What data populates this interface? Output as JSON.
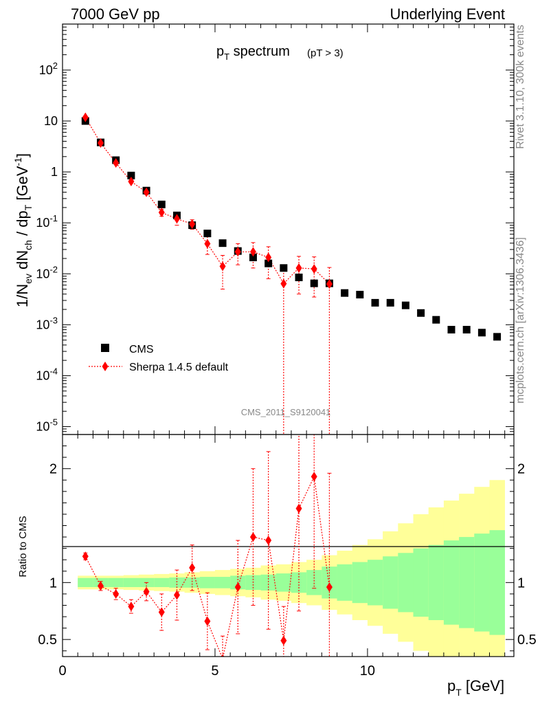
{
  "header": {
    "left": "7000 GeV pp",
    "right": "Underlying Event"
  },
  "side": {
    "rivet": "Rivet 3.1.10,  300k events",
    "mcplots": "mcplots.cern.ch [arXiv:1306.3436]"
  },
  "plot_title": {
    "main": "p",
    "main_sub": "T",
    "main_rest": " spectrum",
    "cut": "(pT >  3)"
  },
  "watermark": "CMS_2011_S9120041",
  "legend": {
    "cms": "CMS",
    "sherpa": "Sherpa 1.4.5 default"
  },
  "colors": {
    "data": "#000000",
    "mc": "#ff0000",
    "band_inner": "#99ff99",
    "band_outer": "#ffff99"
  },
  "chart_data": [
    {
      "type": "scatter",
      "panel": "main",
      "yscale": "log",
      "ylim": [
        7e-06,
        800
      ],
      "xlim": [
        0,
        14.8
      ],
      "ylabel": "1/N_ev dN_ch / dp_T [GeV^-1]",
      "y_ticks": [
        "10^-5",
        "10^-4",
        "10^-3",
        "10^-2",
        "10^-1",
        "1",
        "10",
        "10^2"
      ],
      "series": [
        {
          "name": "CMS",
          "marker": "square",
          "x": [
            0.75,
            1.25,
            1.75,
            2.25,
            2.75,
            3.25,
            3.75,
            4.25,
            4.75,
            5.25,
            5.75,
            6.25,
            6.75,
            7.25,
            7.75,
            8.25,
            8.75,
            9.25,
            9.75,
            10.25,
            10.75,
            11.25,
            11.75,
            12.25,
            12.75,
            13.25,
            13.75,
            14.25
          ],
          "y": [
            10,
            3.8,
            1.7,
            0.85,
            0.43,
            0.23,
            0.14,
            0.09,
            0.062,
            0.04,
            0.028,
            0.021,
            0.016,
            0.013,
            0.0085,
            0.0065,
            0.0065,
            0.0042,
            0.0039,
            0.0027,
            0.0027,
            0.0024,
            0.0017,
            0.00125,
            0.0008,
            0.0008,
            0.0007,
            0.00058
          ]
        },
        {
          "name": "Sherpa 1.4.5 default",
          "marker": "diamond",
          "x": [
            0.75,
            1.25,
            1.75,
            2.25,
            2.75,
            3.25,
            3.75,
            4.25,
            4.75,
            5.25,
            5.75,
            6.25,
            6.75,
            7.25,
            7.75,
            8.25,
            8.75
          ],
          "y": [
            11.8,
            3.7,
            1.5,
            0.65,
            0.4,
            0.16,
            0.12,
            0.095,
            0.039,
            0.014,
            0.027,
            0.027,
            0.021,
            0.0064,
            0.013,
            0.0125,
            0.0063
          ],
          "err_lo": [
            0.4,
            0.15,
            0.08,
            0.05,
            0.04,
            0.025,
            0.03,
            0.02,
            0.015,
            0.009,
            0.012,
            0.014,
            0.013,
            0.0064,
            0.009,
            0.009,
            0.0063
          ],
          "err_hi": [
            0.4,
            0.15,
            0.08,
            0.05,
            0.04,
            0.025,
            0.03,
            0.02,
            0.015,
            0.009,
            0.012,
            0.014,
            0.013,
            0.007,
            0.009,
            0.009,
            0.007
          ]
        }
      ]
    },
    {
      "type": "scatter",
      "panel": "ratio",
      "ylabel": "Ratio to CMS",
      "ylim": [
        0.35,
        2.3
      ],
      "xlim": [
        0,
        14.8
      ],
      "xlabel": "p_T [GeV]",
      "x_ticks": [
        "0",
        "5",
        "10"
      ],
      "y_ticks": [
        "0.5",
        "1",
        "2"
      ],
      "band_edges": [
        0.5,
        1.0,
        1.5,
        2.0,
        2.5,
        3.0,
        3.5,
        4.0,
        4.5,
        5.0,
        5.5,
        6.0,
        6.5,
        7.0,
        7.5,
        8.0,
        8.5,
        9.0,
        9.5,
        10.0,
        10.5,
        11.0,
        11.5,
        12.0,
        12.5,
        13.0,
        13.5,
        14.0,
        14.5
      ],
      "band_inner": [
        0.04,
        0.04,
        0.04,
        0.04,
        0.04,
        0.04,
        0.045,
        0.045,
        0.05,
        0.05,
        0.06,
        0.065,
        0.07,
        0.08,
        0.09,
        0.11,
        0.14,
        0.16,
        0.18,
        0.2,
        0.23,
        0.26,
        0.3,
        0.33,
        0.37,
        0.4,
        0.43,
        0.46
      ],
      "band_outer": [
        0.06,
        0.06,
        0.06,
        0.065,
        0.07,
        0.075,
        0.08,
        0.09,
        0.1,
        0.11,
        0.12,
        0.13,
        0.15,
        0.16,
        0.18,
        0.2,
        0.24,
        0.28,
        0.33,
        0.38,
        0.45,
        0.52,
        0.6,
        0.66,
        0.72,
        0.78,
        0.84,
        0.9
      ],
      "series": [
        {
          "name": "Sherpa 1.4.5 default",
          "x": [
            0.75,
            1.25,
            1.75,
            2.25,
            2.75,
            3.25,
            3.75,
            4.25,
            4.75,
            5.25,
            5.75,
            6.25,
            6.75,
            7.25,
            7.75,
            8.25,
            8.75
          ],
          "y": [
            1.23,
            0.97,
            0.9,
            0.79,
            0.92,
            0.74,
            0.89,
            1.13,
            0.66,
            0.33,
            0.96,
            1.4,
            1.37,
            0.49,
            1.65,
            1.93,
            0.96
          ],
          "err_lo": [
            0.03,
            0.04,
            0.05,
            0.06,
            0.08,
            0.16,
            0.22,
            0.2,
            0.25,
            0.2,
            0.41,
            0.6,
            0.78,
            0.3,
            0.9,
            0.98,
            0.96
          ],
          "err_hi": [
            0.03,
            0.04,
            0.05,
            0.06,
            0.08,
            0.16,
            0.22,
            0.2,
            0.25,
            0.2,
            0.41,
            0.6,
            0.78,
            0.3,
            1.0,
            1.0,
            1.0
          ]
        }
      ]
    }
  ]
}
